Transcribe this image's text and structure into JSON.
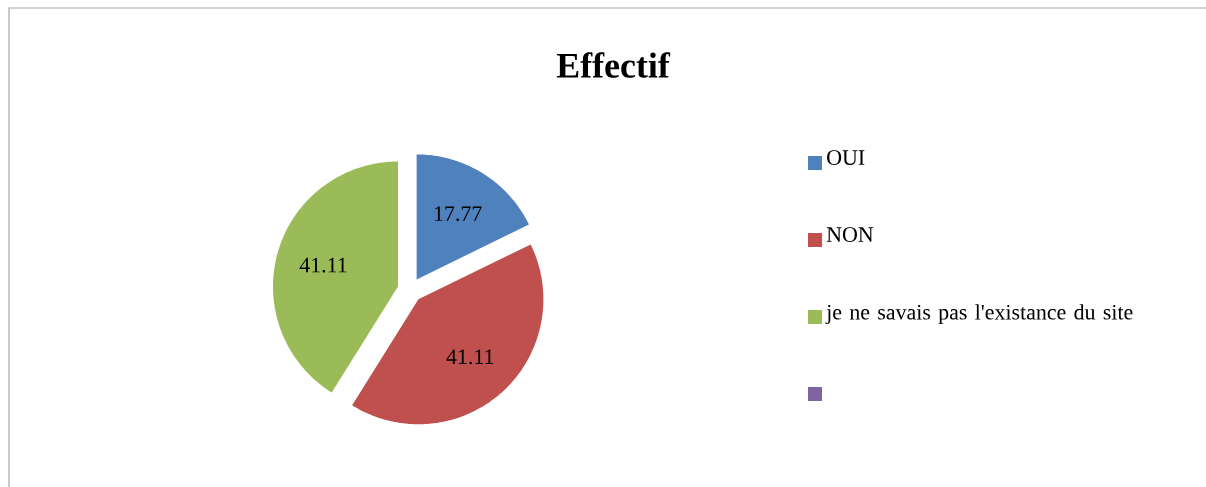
{
  "chart_data": {
    "type": "pie",
    "title": "Effectif",
    "categories": [
      "OUI",
      "NON",
      "je ne savais pas l'existance du site",
      null
    ],
    "values": [
      17.77,
      41.11,
      41.11,
      0
    ],
    "colors": [
      "#4f81bd",
      "#c0504d",
      "#9bbb59",
      "#8064a2"
    ],
    "data_labels": true,
    "legend": "right"
  }
}
